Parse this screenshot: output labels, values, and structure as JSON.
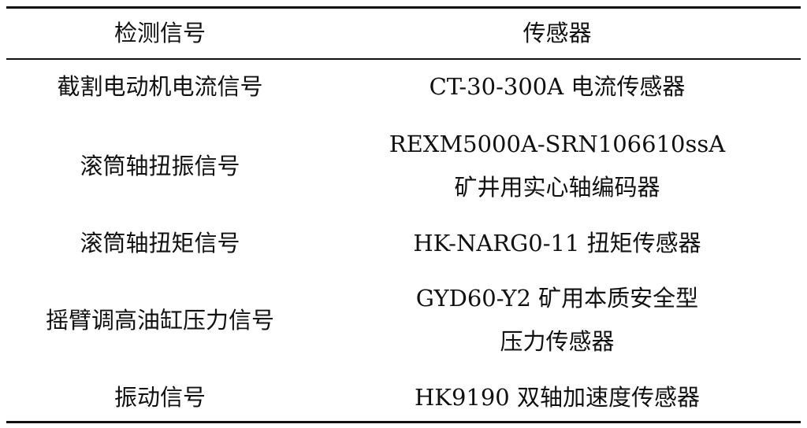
{
  "table": {
    "headers": [
      "检测信号",
      "传感器"
    ],
    "rows": [
      {
        "signal": "截割电动机电流信号",
        "sensor": [
          "CT-30-300A 电流传感器"
        ]
      },
      {
        "signal": "滚筒轴扭振信号",
        "sensor": [
          "REXM5000A-SRN106610ssA",
          "矿井用实心轴编码器"
        ]
      },
      {
        "signal": "滚筒轴扭矩信号",
        "sensor": [
          "HK-NARG0-11 扭矩传感器"
        ]
      },
      {
        "signal": "摇臂调高油缸压力信号",
        "sensor": [
          "GYD60-Y2 矿用本质安全型",
          "压力传感器"
        ]
      },
      {
        "signal": "振动信号",
        "sensor": [
          "HK9190 双轴加速度传感器"
        ]
      }
    ]
  }
}
